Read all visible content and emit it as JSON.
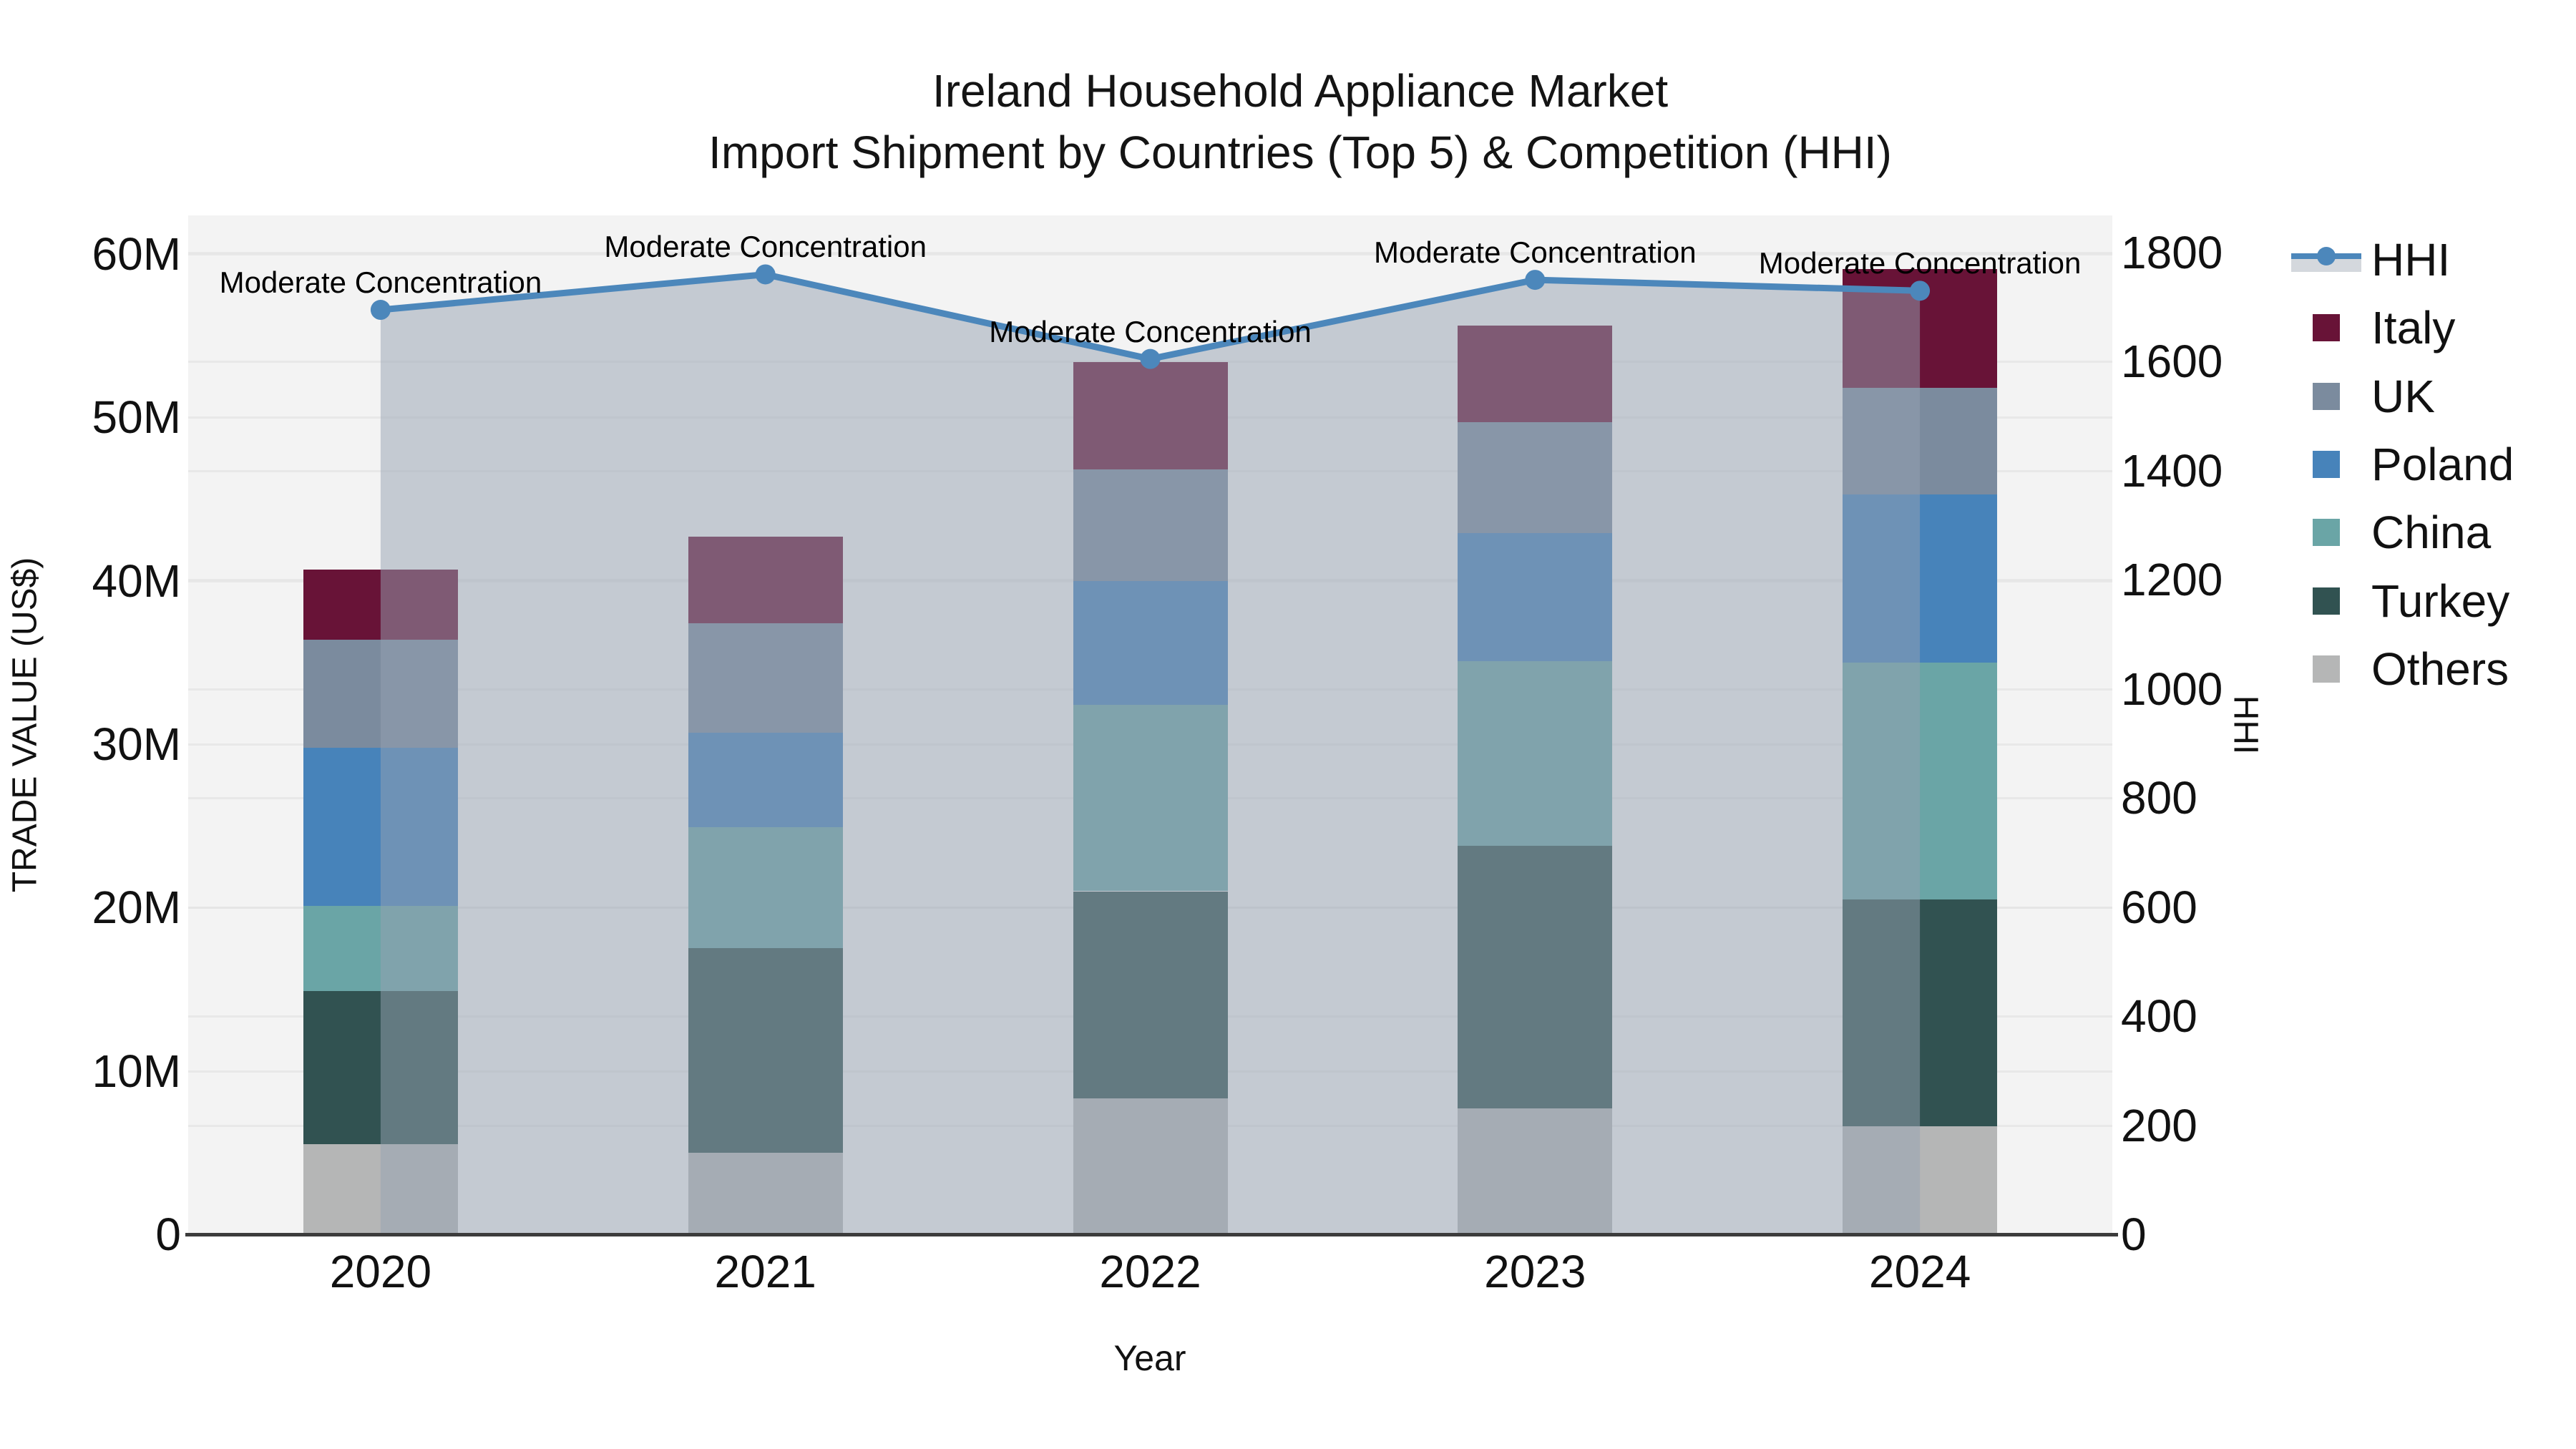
{
  "title": {
    "line1": "Ireland Household Appliance Market",
    "line2": "Import Shipment by Countries (Top 5) & Competition (HHI)"
  },
  "axes": {
    "x_title": "Year",
    "y_left_title": "TRADE VALUE (US$)",
    "y_right_title": "HHI",
    "y_left_ticks": [
      "0",
      "10M",
      "20M",
      "30M",
      "40M",
      "50M",
      "60M"
    ],
    "y_right_ticks": [
      "0",
      "200",
      "400",
      "600",
      "800",
      "1000",
      "1200",
      "1400",
      "1600",
      "1800"
    ],
    "y_left_max_m": 60,
    "y_right_max": 1800
  },
  "colors": {
    "italy": "#681337",
    "uk": "#7B8B9E",
    "poland": "#4783BA",
    "china": "#6AA5A6",
    "turkey": "#315251",
    "others": "#B5B6B6",
    "hhi_line": "#4C87BB",
    "area_fill": "rgba(150,162,178,0.5)",
    "plot_bg": "#F3F3F3",
    "grid": "#E4E4E4",
    "axis_line": "#3C3C3C"
  },
  "chart_data": {
    "type": "bar",
    "subtype": "stacked-bars-with-line-overlay",
    "categories": [
      "2020",
      "2021",
      "2022",
      "2023",
      "2024"
    ],
    "stack_order_bottom_to_top": [
      "Others",
      "Turkey",
      "China",
      "Poland",
      "UK",
      "Italy"
    ],
    "series": [
      {
        "name": "Others",
        "color_key": "others",
        "values": [
          5.5,
          5.0,
          8.3,
          7.7,
          6.6
        ]
      },
      {
        "name": "Turkey",
        "color_key": "turkey",
        "values": [
          9.4,
          12.5,
          12.7,
          16.1,
          13.9
        ]
      },
      {
        "name": "China",
        "color_key": "china",
        "values": [
          5.2,
          7.4,
          11.4,
          11.3,
          14.5
        ]
      },
      {
        "name": "Poland",
        "color_key": "poland",
        "values": [
          9.7,
          5.8,
          7.6,
          7.8,
          10.3
        ]
      },
      {
        "name": "UK",
        "color_key": "uk",
        "values": [
          6.6,
          6.7,
          6.8,
          6.8,
          6.5
        ]
      },
      {
        "name": "Italy",
        "color_key": "italy",
        "values": [
          4.3,
          5.3,
          6.6,
          5.9,
          7.3
        ]
      }
    ],
    "totals_m": [
      40.7,
      42.7,
      53.4,
      55.6,
      59.1
    ],
    "line_series": {
      "name": "HHI",
      "values": [
        1695,
        1760,
        1605,
        1750,
        1730
      ],
      "annotations": [
        "Moderate Concentration",
        "Moderate Concentration",
        "Moderate Concentration",
        "Moderate Concentration",
        "Moderate Concentration"
      ]
    },
    "value_unit": "US$ millions",
    "ylabel_left": "TRADE VALUE (US$)",
    "ylabel_right": "HHI",
    "xlabel": "Year",
    "ylim_left_m": [
      0,
      60
    ],
    "ylim_right": [
      0,
      1800
    ],
    "grid": true,
    "legend_position": "right"
  },
  "legend": {
    "items": [
      {
        "label": "HHI",
        "kind": "line",
        "color_key": "hhi_line"
      },
      {
        "label": "Italy",
        "kind": "swatch",
        "color_key": "italy"
      },
      {
        "label": "UK",
        "kind": "swatch",
        "color_key": "uk"
      },
      {
        "label": "Poland",
        "kind": "swatch",
        "color_key": "poland"
      },
      {
        "label": "China",
        "kind": "swatch",
        "color_key": "china"
      },
      {
        "label": "Turkey",
        "kind": "swatch",
        "color_key": "turkey"
      },
      {
        "label": "Others",
        "kind": "swatch",
        "color_key": "others"
      }
    ]
  }
}
